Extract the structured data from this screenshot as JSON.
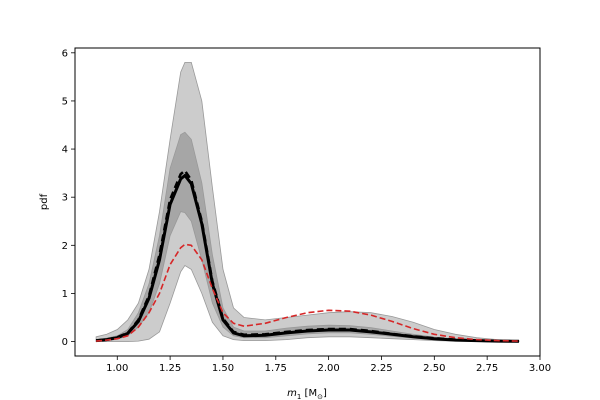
{
  "chart_data": {
    "type": "line",
    "title": "",
    "xlabel_main": "m",
    "xlabel_sub": "1",
    "xlabel_unit_open": " [M",
    "xlabel_unit_sub": "⊙",
    "xlabel_unit_close": "]",
    "ylabel": "pdf",
    "xlim": [
      0.8,
      3.0
    ],
    "ylim": [
      -0.3,
      6.1
    ],
    "xticks": [
      1.0,
      1.25,
      1.5,
      1.75,
      2.0,
      2.25,
      2.5,
      2.75,
      3.0
    ],
    "xtick_labels": [
      "1.00",
      "1.25",
      "1.50",
      "1.75",
      "2.00",
      "2.25",
      "2.50",
      "2.75",
      "3.00"
    ],
    "yticks": [
      0,
      1,
      2,
      3,
      4,
      5,
      6
    ],
    "ytick_labels": [
      "0",
      "1",
      "2",
      "3",
      "4",
      "5",
      "6"
    ],
    "grid": false,
    "x": [
      0.9,
      0.95,
      1.0,
      1.05,
      1.1,
      1.15,
      1.2,
      1.25,
      1.3,
      1.32,
      1.35,
      1.4,
      1.45,
      1.5,
      1.55,
      1.6,
      1.7,
      1.8,
      1.9,
      2.0,
      2.1,
      2.2,
      2.3,
      2.4,
      2.5,
      2.6,
      2.7,
      2.8,
      2.9
    ],
    "series": [
      {
        "style": "outer-band",
        "color": "#cccccc",
        "lower": [
          0,
          0,
          0,
          0,
          0.01,
          0.05,
          0.2,
          0.8,
          1.45,
          1.58,
          1.5,
          1.0,
          0.4,
          0.12,
          0.04,
          0.02,
          0.02,
          0.04,
          0.08,
          0.1,
          0.1,
          0.08,
          0.06,
          0.04,
          0.02,
          0.01,
          0.01,
          0.005,
          0
        ],
        "upper": [
          0.1,
          0.15,
          0.25,
          0.45,
          0.8,
          1.5,
          2.7,
          4.2,
          5.6,
          5.8,
          5.8,
          5.0,
          3.2,
          1.5,
          0.7,
          0.5,
          0.45,
          0.5,
          0.55,
          0.6,
          0.62,
          0.6,
          0.52,
          0.4,
          0.25,
          0.15,
          0.08,
          0.04,
          0.02
        ]
      },
      {
        "style": "inner-band",
        "color": "#a6a6a6",
        "lower": [
          0.01,
          0.02,
          0.05,
          0.12,
          0.3,
          0.6,
          1.2,
          2.2,
          2.7,
          2.68,
          2.5,
          1.7,
          0.8,
          0.3,
          0.12,
          0.08,
          0.08,
          0.12,
          0.16,
          0.18,
          0.18,
          0.15,
          0.11,
          0.07,
          0.04,
          0.02,
          0.01,
          0.005,
          0
        ],
        "upper": [
          0.04,
          0.07,
          0.12,
          0.25,
          0.6,
          1.2,
          2.2,
          3.6,
          4.3,
          4.35,
          4.2,
          3.3,
          1.8,
          0.7,
          0.3,
          0.22,
          0.22,
          0.28,
          0.32,
          0.34,
          0.33,
          0.29,
          0.22,
          0.15,
          0.09,
          0.05,
          0.03,
          0.015,
          0.01
        ]
      },
      {
        "style": "solid-line",
        "color": "#000000",
        "values": [
          0.02,
          0.04,
          0.08,
          0.17,
          0.42,
          0.9,
          1.7,
          2.85,
          3.38,
          3.45,
          3.28,
          2.45,
          1.2,
          0.45,
          0.18,
          0.12,
          0.13,
          0.18,
          0.22,
          0.24,
          0.24,
          0.2,
          0.15,
          0.1,
          0.06,
          0.03,
          0.02,
          0.01,
          0.005
        ]
      },
      {
        "style": "dashed-line",
        "color": "#000000",
        "values": [
          0.02,
          0.04,
          0.09,
          0.18,
          0.45,
          0.95,
          1.8,
          2.95,
          3.48,
          3.55,
          3.35,
          2.5,
          1.25,
          0.48,
          0.2,
          0.14,
          0.15,
          0.2,
          0.24,
          0.26,
          0.26,
          0.22,
          0.16,
          0.11,
          0.07,
          0.04,
          0.02,
          0.01,
          0.005
        ]
      },
      {
        "style": "dashed-line",
        "color": "#d62728",
        "values": [
          0.01,
          0.03,
          0.06,
          0.12,
          0.3,
          0.6,
          1.0,
          1.6,
          1.95,
          2.02,
          2.0,
          1.7,
          1.1,
          0.6,
          0.38,
          0.32,
          0.38,
          0.5,
          0.6,
          0.65,
          0.63,
          0.55,
          0.42,
          0.27,
          0.15,
          0.08,
          0.04,
          0.02,
          0.01
        ]
      }
    ]
  }
}
